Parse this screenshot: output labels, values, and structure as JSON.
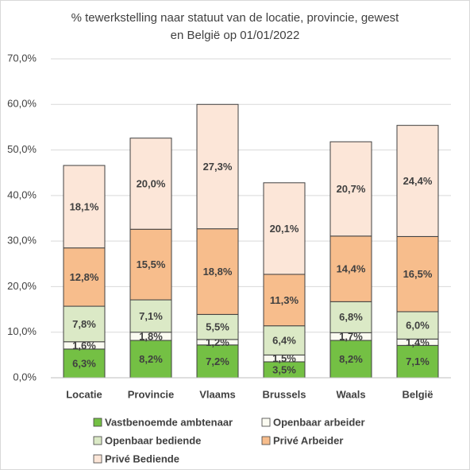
{
  "chart_data": {
    "type": "stacked_bar",
    "title": "% tewerkstelling naar statuut van de locatie, provincie, gewest en België op 01/01/2022",
    "categories": [
      "Locatie",
      "Provincie",
      "Vlaams",
      "Brussels",
      "Waals",
      "België"
    ],
    "series": [
      {
        "name": "Vastbenoemde ambtenaar",
        "color": "#74c044",
        "values": [
          6.3,
          8.2,
          7.2,
          3.5,
          8.2,
          7.1
        ],
        "value_labels": [
          "6,3%",
          "8,2%",
          "7,2%",
          "3,5%",
          "8,2%",
          "7,1%"
        ]
      },
      {
        "name": "Openbaar arbeider",
        "color": "#fbfbf1",
        "values": [
          1.6,
          1.8,
          1.2,
          1.5,
          1.7,
          1.4
        ],
        "value_labels": [
          "1,6%",
          "1,8%",
          "1,2%",
          "1,5%",
          "1,7%",
          "1,4%"
        ]
      },
      {
        "name": "Openbaar bediende",
        "color": "#dbe9c6",
        "values": [
          7.8,
          7.1,
          5.5,
          6.4,
          6.8,
          6.0
        ],
        "value_labels": [
          "7,8%",
          "7,1%",
          "5,5%",
          "6,4%",
          "6,8%",
          "6,0%"
        ]
      },
      {
        "name": "Privé Arbeider",
        "color": "#f7bd8c",
        "values": [
          12.8,
          15.5,
          18.8,
          11.3,
          14.4,
          16.5
        ],
        "value_labels": [
          "12,8%",
          "15,5%",
          "18,8%",
          "11,3%",
          "14,4%",
          "16,5%"
        ]
      },
      {
        "name": "Privé Bediende",
        "color": "#fce6d8",
        "values": [
          18.1,
          20.0,
          27.3,
          20.1,
          20.7,
          24.4
        ],
        "value_labels": [
          "18,1%",
          "20,0%",
          "27,3%",
          "20,1%",
          "20,7%",
          "24,4%"
        ]
      }
    ],
    "ylim": [
      0,
      70
    ],
    "yticks": [
      {
        "value": 0,
        "label": "0,0%"
      },
      {
        "value": 10,
        "label": "10,0%"
      },
      {
        "value": 20,
        "label": "20,0%"
      },
      {
        "value": 30,
        "label": "30,0%"
      },
      {
        "value": 40,
        "label": "40,0%"
      },
      {
        "value": 50,
        "label": "50,0%"
      },
      {
        "value": 60,
        "label": "60,0%"
      },
      {
        "value": 70,
        "label": "70,0%"
      }
    ],
    "grid": true
  }
}
